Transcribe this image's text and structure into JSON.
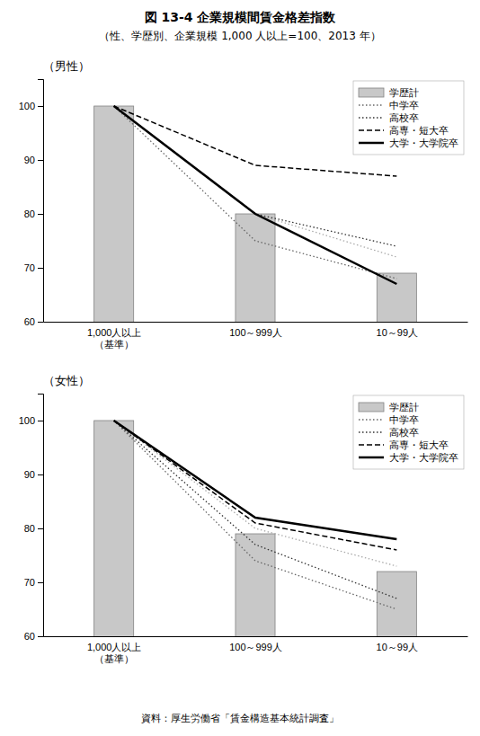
{
  "title": "図 13-4  企業規模間賃金格差指数",
  "subtitle": "（性、学歴別、企業規模 1,000 人以上=100、2013 年）",
  "source": "資料：厚生労働省「賃金構造基本統計調査」",
  "chart_data": [
    {
      "type": "bar",
      "title": "（男性）",
      "categories": [
        "1,000人以上\n（基準）",
        "100～999人",
        "10～99人"
      ],
      "ylim": [
        60,
        105
      ],
      "yticks": [
        60,
        70,
        80,
        90,
        100
      ],
      "grid": false,
      "legend": "upper right",
      "series": [
        {
          "name": "学歴計",
          "type": "bar",
          "color": "#c8c8c8",
          "values": [
            100,
            80,
            69
          ]
        },
        {
          "type": "line",
          "color": "#aaaaaa",
          "line_style": "dotted",
          "values": [
            100,
            80,
            72
          ]
        },
        {
          "name": "中学卒",
          "type": "line",
          "color": "#666666",
          "line_style": "dotted",
          "values": [
            100,
            75,
            68
          ]
        },
        {
          "name": "高校卒",
          "type": "line",
          "color": "#333333",
          "line_style": "dotted",
          "values": [
            100,
            80,
            74
          ]
        },
        {
          "name": "高専・短大卒",
          "type": "line",
          "color": "#000000",
          "line_style": "dashed",
          "values": [
            100,
            89,
            87
          ]
        },
        {
          "name": "大学・大学院卒",
          "type": "line",
          "color": "#000000",
          "line_style": "solid",
          "values": [
            100,
            80,
            67
          ]
        }
      ]
    },
    {
      "type": "bar",
      "title": "（女性）",
      "categories": [
        "1,000人以上\n（基準）",
        "100～999人",
        "10～99人"
      ],
      "ylim": [
        60,
        105
      ],
      "yticks": [
        60,
        70,
        80,
        90,
        100
      ],
      "grid": false,
      "legend": "upper right",
      "series": [
        {
          "name": "学歴計",
          "type": "bar",
          "color": "#c8c8c8",
          "values": [
            100,
            79,
            72
          ]
        },
        {
          "type": "line",
          "color": "#aaaaaa",
          "line_style": "dotted",
          "values": [
            100,
            80,
            73
          ]
        },
        {
          "name": "中学卒",
          "type": "line",
          "color": "#666666",
          "line_style": "dotted",
          "values": [
            100,
            74,
            65
          ]
        },
        {
          "name": "高校卒",
          "type": "line",
          "color": "#333333",
          "line_style": "dotted",
          "values": [
            100,
            77,
            67
          ]
        },
        {
          "name": "高専・短大卒",
          "type": "line",
          "color": "#000000",
          "line_style": "dashed",
          "values": [
            100,
            81,
            76
          ]
        },
        {
          "name": "大学・大学院卒",
          "type": "line",
          "color": "#000000",
          "line_style": "solid",
          "values": [
            100,
            82,
            78
          ]
        }
      ]
    }
  ]
}
